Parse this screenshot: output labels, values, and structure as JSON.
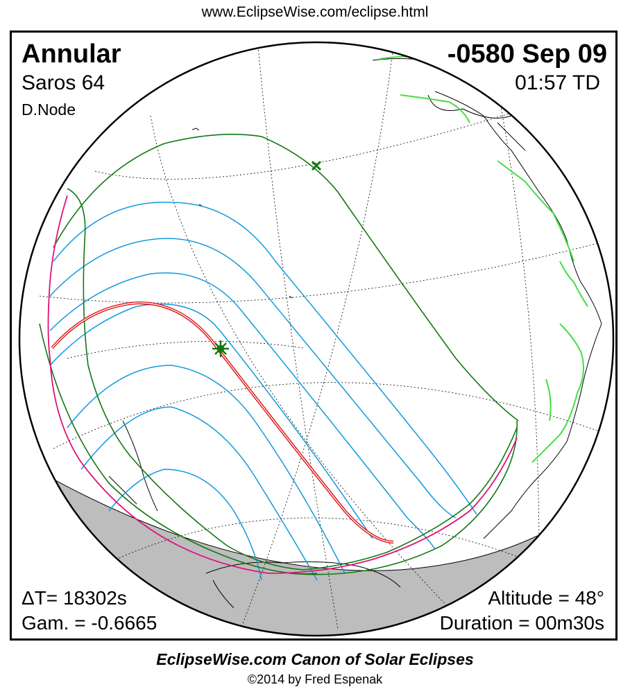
{
  "header": {
    "url": "www.EclipseWise.com/eclipse.html"
  },
  "eclipse": {
    "type": "Annular",
    "saros": "Saros  64",
    "node": "D.Node",
    "date": "-0580 Sep 09",
    "time": "01:57 TD",
    "delta_t": "ΔT=  18302s",
    "gamma": "Gam. = -0.6665",
    "altitude": "Altitude = 48°",
    "duration": "Duration = 00m30s"
  },
  "footer": {
    "canon": "EclipseWise.com Canon of Solar Eclipses",
    "copyright": "©2014 by Fred Espenak"
  },
  "map": {
    "projection": "orthographic",
    "colors": {
      "central_line": "#dd0000",
      "penumbral_limits": "#117711",
      "magnitude_lines": "#1199dd",
      "rise_set_curve": "#dd1177",
      "coastlines": "#000000",
      "borders": "#44dd44",
      "night_side": "#bdbdbd"
    },
    "markers": [
      "greatest-eclipse-star-icon",
      "subsolar-point-x-icon"
    ]
  }
}
